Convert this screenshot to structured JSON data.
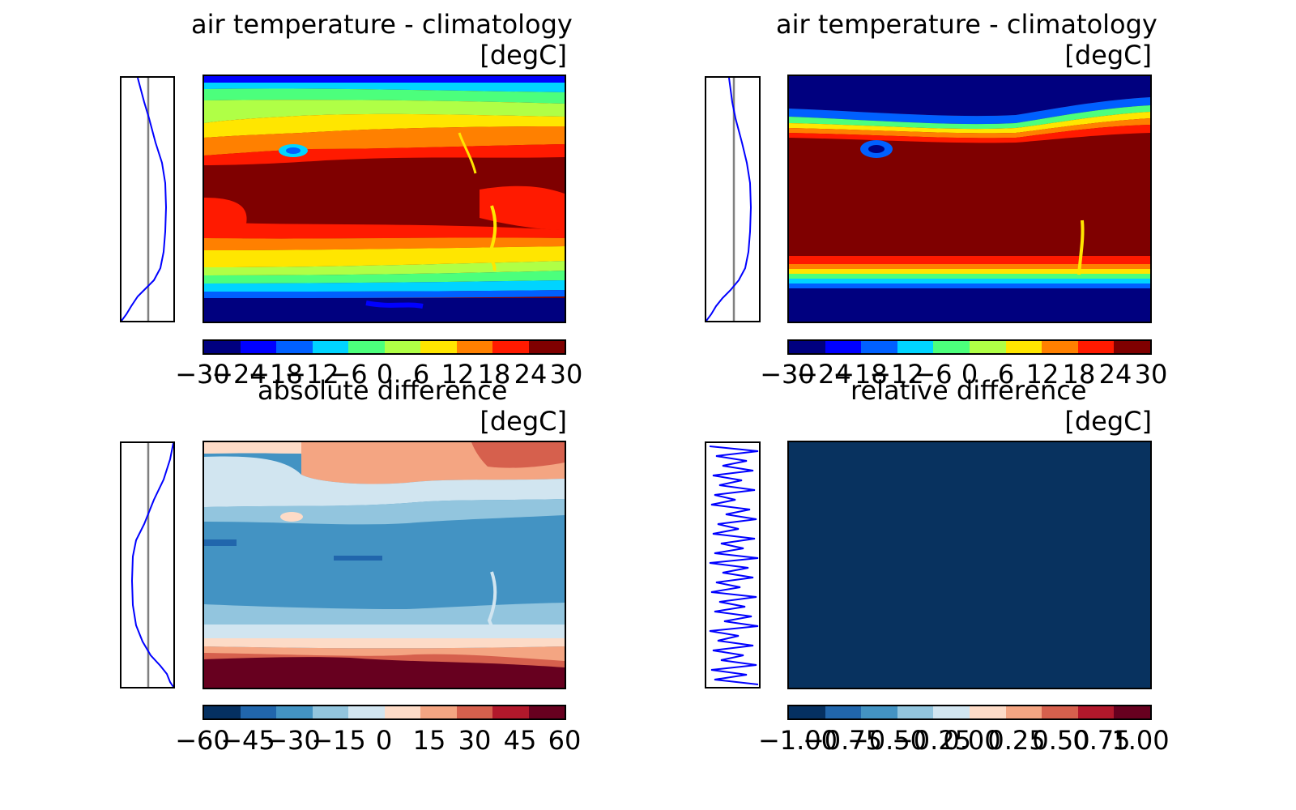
{
  "chart_data": [
    {
      "type": "heatmap",
      "title": "air temperature - climatology",
      "unit": "[degC]",
      "colorbar": {
        "ticks": [
          "−30",
          "−24",
          "−18",
          "−12",
          "−6",
          "0",
          "6",
          "12",
          "18",
          "24",
          "30"
        ],
        "colors": [
          "#00007f",
          "#0000ff",
          "#0060ff",
          "#00d4ff",
          "#4cff7c",
          "#b0ff46",
          "#ffe600",
          "#ff8000",
          "#ff1a00",
          "#7f0000"
        ]
      },
      "zonal_profile": {
        "x_ref": 0.5
      }
    },
    {
      "type": "heatmap",
      "title": "air temperature - climatology",
      "unit": "[degC]",
      "colorbar": {
        "ticks": [
          "−30",
          "−24",
          "−18",
          "−12",
          "−6",
          "0",
          "6",
          "12",
          "18",
          "24",
          "30"
        ],
        "colors": [
          "#00007f",
          "#0000ff",
          "#0060ff",
          "#00d4ff",
          "#4cff7c",
          "#b0ff46",
          "#ffe600",
          "#ff8000",
          "#ff1a00",
          "#7f0000"
        ]
      },
      "zonal_profile": {
        "x_ref": 0.5
      }
    },
    {
      "type": "heatmap",
      "title": "absolute difference",
      "unit": "[degC]",
      "colorbar": {
        "ticks": [
          "−60",
          "−45",
          "−30",
          "−15",
          "0",
          "15",
          "30",
          "45",
          "60"
        ],
        "colors": [
          "#053061",
          "#2166ac",
          "#4393c3",
          "#92c5de",
          "#d1e5f0",
          "#fddbc7",
          "#f4a582",
          "#d6604d",
          "#b2182b",
          "#67001f"
        ]
      },
      "zonal_profile": {
        "x_ref": 0.5
      }
    },
    {
      "type": "heatmap",
      "title": "relative difference",
      "unit": "[degC]",
      "colorbar": {
        "ticks": [
          "−1.00",
          "−0.75",
          "−0.50",
          "−0.25",
          "0.00",
          "0.25",
          "0.50",
          "0.75",
          "1.00"
        ],
        "colors": [
          "#053061",
          "#2166ac",
          "#4393c3",
          "#92c5de",
          "#d1e5f0",
          "#fddbc7",
          "#f4a582",
          "#d6604d",
          "#b2182b",
          "#67001f"
        ]
      },
      "zonal_profile": {
        "x_ref": 0.5
      }
    }
  ]
}
